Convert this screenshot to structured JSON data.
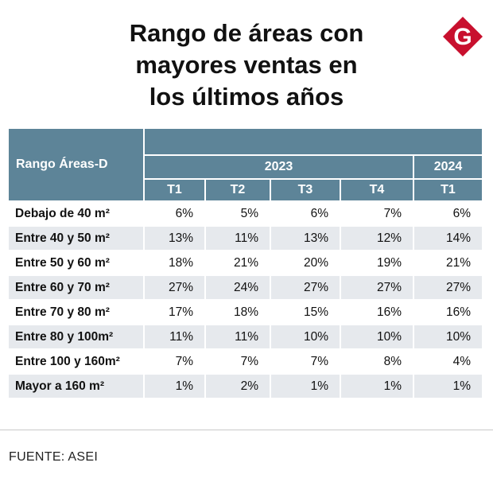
{
  "title_lines": [
    "Rango de áreas con",
    "mayores ventas en",
    "los últimos años"
  ],
  "logo_letter": "G",
  "colors": {
    "header": "#5d8498",
    "alt_row": "#e6e9ed",
    "logo": "#c8102e"
  },
  "chart_data": {
    "type": "table",
    "title": "Rango de áreas con mayores ventas en los últimos años",
    "row_header": "Rango Áreas-D",
    "years": [
      {
        "label": "2023",
        "quarters": [
          "T1",
          "T2",
          "T3",
          "T4"
        ]
      },
      {
        "label": "2024",
        "quarters": [
          "T1"
        ]
      }
    ],
    "rows": [
      {
        "label": "Debajo de 40 m²",
        "values": [
          "6%",
          "5%",
          "6%",
          "7%",
          "6%"
        ]
      },
      {
        "label": "Entre 40 y 50 m²",
        "values": [
          "13%",
          "11%",
          "13%",
          "12%",
          "14%"
        ]
      },
      {
        "label": "Entre 50 y 60 m²",
        "values": [
          "18%",
          "21%",
          "20%",
          "19%",
          "21%"
        ]
      },
      {
        "label": "Entre 60 y 70 m²",
        "values": [
          "27%",
          "24%",
          "27%",
          "27%",
          "27%"
        ]
      },
      {
        "label": "Entre 70 y 80 m²",
        "values": [
          "17%",
          "18%",
          "15%",
          "16%",
          "16%"
        ]
      },
      {
        "label": "Entre 80 y 100m²",
        "values": [
          "11%",
          "11%",
          "10%",
          "10%",
          "10%"
        ]
      },
      {
        "label": "Entre 100 y 160m²",
        "values": [
          "7%",
          "7%",
          "7%",
          "8%",
          "4%"
        ]
      },
      {
        "label": "Mayor a 160 m²",
        "values": [
          "1%",
          "2%",
          "1%",
          "1%",
          "1%"
        ]
      }
    ]
  },
  "source": "FUENTE: ASEI"
}
